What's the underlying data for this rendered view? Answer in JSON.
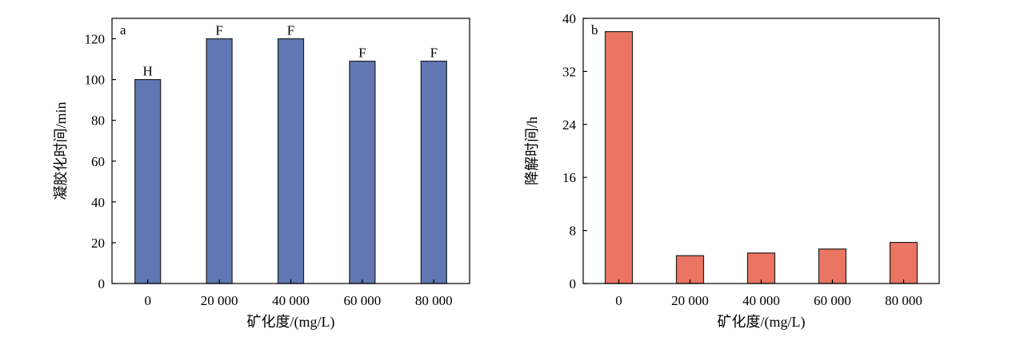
{
  "chart_data": [
    {
      "type": "bar",
      "panel_label": "a",
      "categories": [
        "0",
        "20 000",
        "40 000",
        "60 000",
        "80 000"
      ],
      "values": [
        100,
        120,
        120,
        109,
        109
      ],
      "bar_labels": [
        "H",
        "F",
        "F",
        "F",
        "F"
      ],
      "xlabel": "矿化度/(mg/L)",
      "ylabel": "凝胶化时间/min",
      "ylim": [
        0,
        130
      ],
      "yticks": [
        "0",
        "20",
        "40",
        "60",
        "80",
        "100",
        "120"
      ],
      "color": "#6077b4",
      "grid": false,
      "legend": false
    },
    {
      "type": "bar",
      "panel_label": "b",
      "categories": [
        "0",
        "20 000",
        "40 000",
        "60 000",
        "80 000"
      ],
      "values": [
        38,
        4.2,
        4.6,
        5.2,
        6.2
      ],
      "xlabel": "矿化度/(mg/L)",
      "ylabel": "降解时间/h",
      "ylim": [
        0,
        40
      ],
      "yticks": [
        "0",
        "8",
        "16",
        "24",
        "32",
        "40"
      ],
      "color": "#ea7562",
      "grid": false,
      "legend": false
    }
  ]
}
